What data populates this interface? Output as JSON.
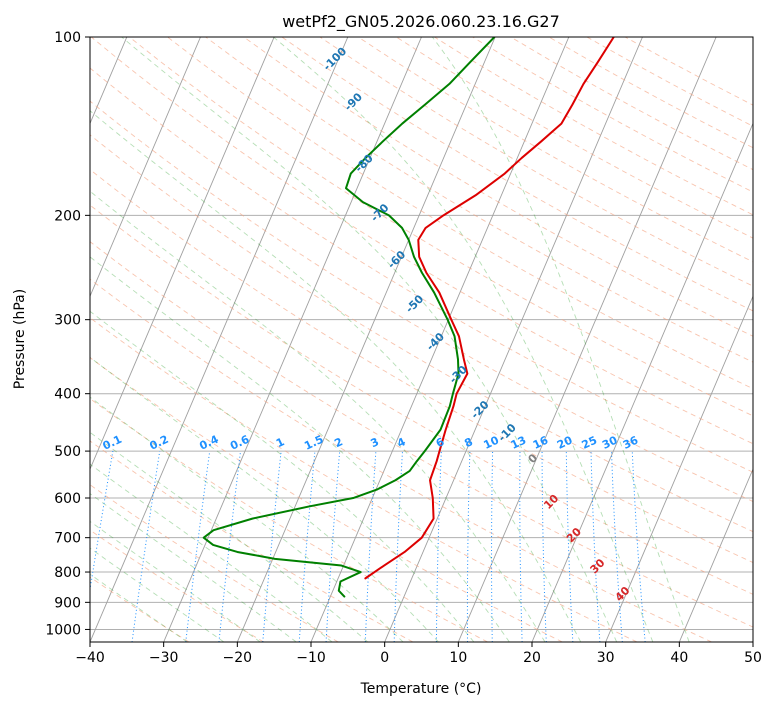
{
  "chart_data": {
    "type": "line",
    "title": "wetPf2_GN05.2026.060.23.16.G27",
    "xlabel": "Temperature (°C)",
    "ylabel": "Pressure (hPa)",
    "xlim": [
      -40,
      50
    ],
    "ylim": [
      1050,
      100
    ],
    "y_scale": "log",
    "skew": 35,
    "x_ticks": [
      -40,
      -30,
      -20,
      -10,
      0,
      10,
      20,
      30,
      40,
      50
    ],
    "x_tick_labels": [
      "−40",
      "−30",
      "−20",
      "−10",
      "0",
      "10",
      "20",
      "30",
      "40",
      "50"
    ],
    "y_ticks": [
      100,
      200,
      300,
      400,
      500,
      600,
      700,
      800,
      900,
      1000
    ],
    "y_tick_labels": [
      "100",
      "200",
      "300",
      "400",
      "500",
      "600",
      "700",
      "800",
      "900",
      "1000"
    ],
    "series": [
      {
        "name": "temperature",
        "color": "#dd0000",
        "points": [
          {
            "p": 820,
            "t": -6.3
          },
          {
            "p": 780,
            "t": -4.5
          },
          {
            "p": 740,
            "t": -2.5
          },
          {
            "p": 700,
            "t": -1.0
          },
          {
            "p": 650,
            "t": -0.5
          },
          {
            "p": 600,
            "t": -1.8
          },
          {
            "p": 560,
            "t": -3.2
          },
          {
            "p": 520,
            "t": -3.4
          },
          {
            "p": 500,
            "t": -3.6
          },
          {
            "p": 460,
            "t": -4.0
          },
          {
            "p": 420,
            "t": -4.3
          },
          {
            "p": 400,
            "t": -4.6
          },
          {
            "p": 370,
            "t": -4.3
          },
          {
            "p": 350,
            "t": -5.6
          },
          {
            "p": 320,
            "t": -7.6
          },
          {
            "p": 300,
            "t": -9.6
          },
          {
            "p": 270,
            "t": -12.8
          },
          {
            "p": 250,
            "t": -15.7
          },
          {
            "p": 235,
            "t": -17.6
          },
          {
            "p": 220,
            "t": -18.7
          },
          {
            "p": 210,
            "t": -18.4
          },
          {
            "p": 200,
            "t": -16.7
          },
          {
            "p": 185,
            "t": -13.5
          },
          {
            "p": 170,
            "t": -10.8
          },
          {
            "p": 160,
            "t": -9.4
          },
          {
            "p": 150,
            "t": -7.7
          },
          {
            "p": 140,
            "t": -6.0
          },
          {
            "p": 130,
            "t": -5.6
          },
          {
            "p": 120,
            "t": -5.3
          },
          {
            "p": 110,
            "t": -4.6
          },
          {
            "p": 100,
            "t": -3.9
          }
        ]
      },
      {
        "name": "dewpoint",
        "color": "#008000",
        "points": [
          {
            "p": 880,
            "t": -8.1
          },
          {
            "p": 860,
            "t": -9.2
          },
          {
            "p": 830,
            "t": -9.5
          },
          {
            "p": 800,
            "t": -7.3
          },
          {
            "p": 780,
            "t": -10.3
          },
          {
            "p": 760,
            "t": -19.7
          },
          {
            "p": 740,
            "t": -25.2
          },
          {
            "p": 720,
            "t": -28.9
          },
          {
            "p": 700,
            "t": -30.6
          },
          {
            "p": 680,
            "t": -29.7
          },
          {
            "p": 650,
            "t": -25.1
          },
          {
            "p": 620,
            "t": -18.1
          },
          {
            "p": 600,
            "t": -12.6
          },
          {
            "p": 580,
            "t": -9.8
          },
          {
            "p": 560,
            "t": -7.9
          },
          {
            "p": 540,
            "t": -6.5
          },
          {
            "p": 520,
            "t": -6.1
          },
          {
            "p": 500,
            "t": -5.6
          },
          {
            "p": 460,
            "t": -4.7
          },
          {
            "p": 420,
            "t": -4.8
          },
          {
            "p": 400,
            "t": -5.1
          },
          {
            "p": 370,
            "t": -5.5
          },
          {
            "p": 350,
            "t": -6.4
          },
          {
            "p": 320,
            "t": -8.2
          },
          {
            "p": 300,
            "t": -10.1
          },
          {
            "p": 270,
            "t": -13.5
          },
          {
            "p": 250,
            "t": -16.3
          },
          {
            "p": 235,
            "t": -18.3
          },
          {
            "p": 220,
            "t": -20.0
          },
          {
            "p": 210,
            "t": -21.6
          },
          {
            "p": 200,
            "t": -24.1
          },
          {
            "p": 190,
            "t": -28.4
          },
          {
            "p": 180,
            "t": -31.5
          },
          {
            "p": 170,
            "t": -31.7
          },
          {
            "p": 160,
            "t": -30.6
          },
          {
            "p": 150,
            "t": -29.2
          },
          {
            "p": 140,
            "t": -27.6
          },
          {
            "p": 130,
            "t": -25.6
          },
          {
            "p": 120,
            "t": -23.5
          },
          {
            "p": 110,
            "t": -21.9
          },
          {
            "p": 100,
            "t": -20.1
          }
        ]
      }
    ],
    "dry_adiabat_label_values": [],
    "theta_e_labels": [
      "-100",
      "-90",
      "-80",
      "-70",
      "-60",
      "-50",
      "-40",
      "-30",
      "-20",
      "-10",
      "0",
      "10",
      "20",
      "30",
      "40"
    ],
    "mixing_ratio_labels": [
      "0.1",
      "0.2",
      "0.4",
      "0.6",
      "1",
      "1.5",
      "2",
      "3",
      "4",
      "6",
      "8",
      "10",
      "13",
      "16",
      "20",
      "25",
      "30",
      "36"
    ],
    "mixing_ratio_values": [
      0.1,
      0.2,
      0.4,
      0.6,
      1,
      1.5,
      2,
      3,
      4,
      6,
      8,
      10,
      13,
      16,
      20,
      25,
      30,
      36
    ],
    "label_colors": {
      "negative": "#1f77b4",
      "zero": "#808080",
      "positive": "#d62728",
      "mixing": "#1e90ff"
    }
  }
}
